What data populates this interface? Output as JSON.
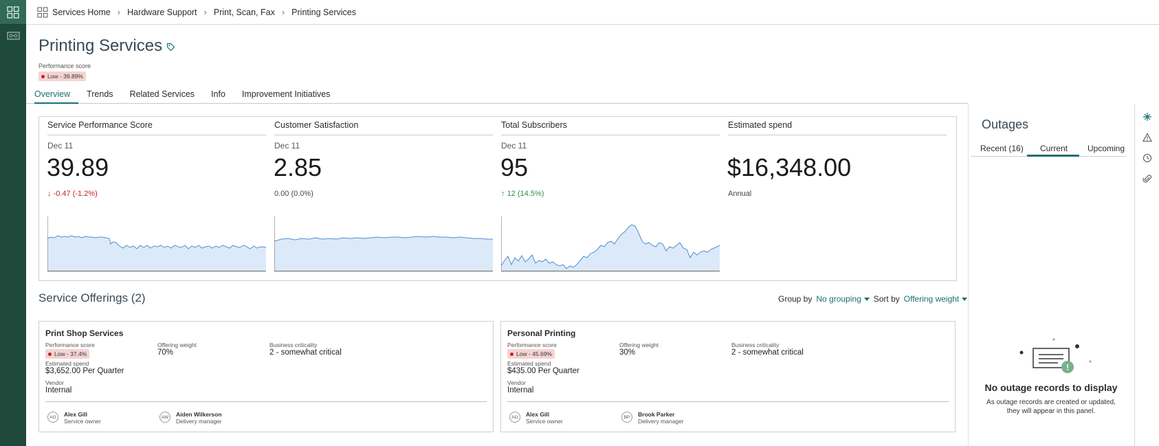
{
  "breadcrumb": {
    "items": [
      "Services Home",
      "Hardware Support",
      "Print, Scan, Fax",
      "Printing Services"
    ]
  },
  "header": {
    "title": "Printing Services",
    "performance_label": "Performance score",
    "performance_badge": "Low - 39.89%"
  },
  "tabs": [
    "Overview",
    "Trends",
    "Related Services",
    "Info",
    "Improvement Initiatives"
  ],
  "metrics": [
    {
      "title": "Service Performance Score",
      "date": "Dec 11",
      "value": "39.89",
      "delta": "-0.47 (-1.2%)",
      "trend": "down"
    },
    {
      "title": "Customer Satisfaction",
      "date": "Dec 11",
      "value": "2.85",
      "delta": "0.00 (0.0%)",
      "trend": "flat"
    },
    {
      "title": "Total Subscribers",
      "date": "Dec 11",
      "value": "95",
      "delta": "12 (14.5%)",
      "trend": "up"
    },
    {
      "title": "Estimated spend",
      "date": "",
      "value": "$16,348.00",
      "delta": "Annual",
      "trend": "none"
    }
  ],
  "offerings": {
    "title": "Service Offerings (2)",
    "group_by_label": "Group by",
    "group_by_value": "No grouping",
    "sort_by_label": "Sort by",
    "sort_by_value": "Offering weight",
    "cards": [
      {
        "name": "Print Shop Services",
        "perf_label": "Performance score",
        "perf_badge": "Low - 37.4%",
        "weight_label": "Offering weight",
        "weight": "70%",
        "crit_label": "Business criticality",
        "crit": "2 - somewhat critical",
        "spend_label": "Estimated spend",
        "spend": "$3,652.00 Per Quarter",
        "vendor_label": "Vendor",
        "vendor": "Internal",
        "people": [
          {
            "initials": "AG",
            "name": "Alex Gill",
            "role": "Service owner"
          },
          {
            "initials": "AW",
            "name": "Aiden Wilkerson",
            "role": "Delivery manager"
          }
        ]
      },
      {
        "name": "Personal Printing",
        "perf_label": "Performance score",
        "perf_badge": "Low - 45.69%",
        "weight_label": "Offering weight",
        "weight": "30%",
        "crit_label": "Business criticality",
        "crit": "2 - somewhat critical",
        "spend_label": "Estimated spend",
        "spend": "$435.00 Per Quarter",
        "vendor_label": "Vendor",
        "vendor": "Internal",
        "people": [
          {
            "initials": "AG",
            "name": "Alex Gill",
            "role": "Service owner"
          },
          {
            "initials": "BP",
            "name": "Brook Parker",
            "role": "Delivery manager"
          }
        ]
      }
    ]
  },
  "outages": {
    "title": "Outages",
    "tabs": [
      "Recent (16)",
      "Current",
      "Upcoming"
    ],
    "active_tab": "Current",
    "empty_title": "No outage records to display",
    "empty_subtitle": "As outage records are created or updated, they will appear in this panel."
  },
  "colors": {
    "rail": "#1f4a3b",
    "accent": "#1b6e73",
    "badge_low": "#f6d3d3",
    "spark_fill": "#dce9f8",
    "spark_line": "#4f8fd1"
  }
}
